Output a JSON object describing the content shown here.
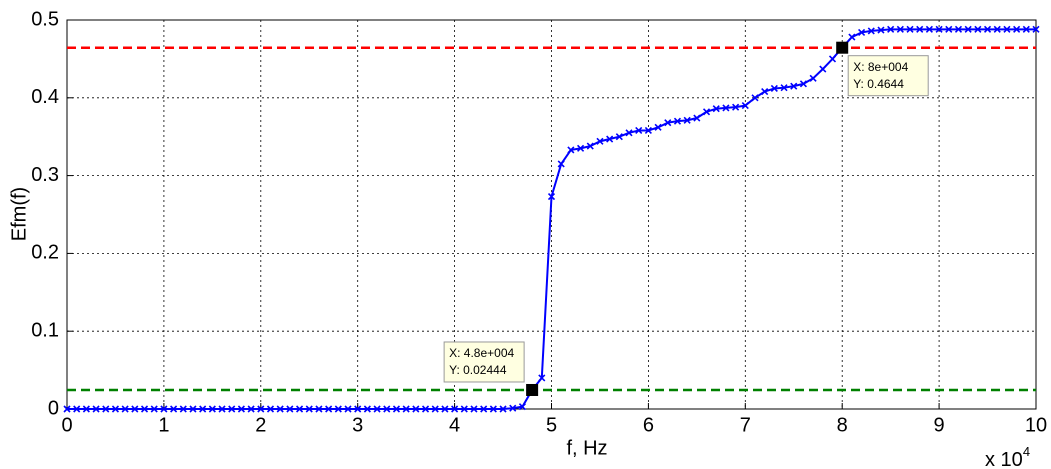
{
  "chart_data": {
    "type": "line",
    "xlabel": "f, Hz",
    "ylabel": "Efm(f)",
    "x_multiplier": "x 10",
    "x_multiplier_exp": "4",
    "x": [
      0,
      1000,
      2000,
      3000,
      4000,
      5000,
      6000,
      7000,
      8000,
      9000,
      10000,
      11000,
      12000,
      13000,
      14000,
      15000,
      16000,
      17000,
      18000,
      19000,
      20000,
      21000,
      22000,
      23000,
      24000,
      25000,
      26000,
      27000,
      28000,
      29000,
      30000,
      31000,
      32000,
      33000,
      34000,
      35000,
      36000,
      37000,
      38000,
      39000,
      40000,
      41000,
      42000,
      43000,
      44000,
      45000,
      46000,
      47000,
      48000,
      49000,
      50000,
      51000,
      52000,
      53000,
      54000,
      55000,
      56000,
      57000,
      58000,
      59000,
      60000,
      61000,
      62000,
      63000,
      64000,
      65000,
      66000,
      67000,
      68000,
      69000,
      70000,
      71000,
      72000,
      73000,
      74000,
      75000,
      76000,
      77000,
      78000,
      79000,
      80000,
      81000,
      82000,
      83000,
      84000,
      85000,
      86000,
      87000,
      88000,
      89000,
      90000,
      91000,
      92000,
      93000,
      94000,
      95000,
      96000,
      97000,
      98000,
      99000,
      100000
    ],
    "series": [
      {
        "color": "#0000ff",
        "values": [
          0,
          0,
          0,
          0,
          0,
          0,
          0,
          0,
          0,
          0,
          0,
          0,
          0,
          0,
          0,
          0,
          0,
          0,
          0,
          0,
          0,
          0,
          0,
          0,
          0,
          0,
          0,
          0,
          0,
          0,
          0,
          0,
          0,
          0,
          0,
          0,
          0,
          0,
          0,
          0,
          0,
          0,
          0,
          0,
          0,
          0,
          0.001,
          0.003,
          0.02444,
          0.04,
          0.273,
          0.315,
          0.333,
          0.335,
          0.338,
          0.344,
          0.347,
          0.35,
          0.355,
          0.358,
          0.358,
          0.362,
          0.368,
          0.37,
          0.371,
          0.374,
          0.382,
          0.386,
          0.387,
          0.388,
          0.39,
          0.4,
          0.408,
          0.412,
          0.413,
          0.415,
          0.418,
          0.425,
          0.437,
          0.45,
          0.4644,
          0.478,
          0.484,
          0.486,
          0.487,
          0.488,
          0.488,
          0.488,
          0.488,
          0.488,
          0.488,
          0.488,
          0.488,
          0.488,
          0.488,
          0.488,
          0.488,
          0.488,
          0.488,
          0.488,
          0.488
        ]
      }
    ],
    "hlines": [
      {
        "value": 0.4644,
        "color": "#ff0000"
      },
      {
        "value": 0.02444,
        "color": "#008000"
      }
    ],
    "datatips": [
      {
        "x": 48000,
        "y": 0.02444,
        "label_x": "X: 4.8e+004",
        "label_y": "Y: 0.02444",
        "corner": "upper-left"
      },
      {
        "x": 80000,
        "y": 0.4644,
        "label_x": "X: 8e+004",
        "label_y": "Y: 0.4644",
        "corner": "lower-right"
      }
    ],
    "xlim": [
      0,
      100000
    ],
    "ylim": [
      0,
      0.5
    ],
    "xticks": [
      0,
      {
        "value": 10000,
        "label": "1"
      },
      {
        "value": 20000,
        "label": "2"
      },
      {
        "value": 30000,
        "label": "3"
      },
      {
        "value": 40000,
        "label": "4"
      },
      {
        "value": 50000,
        "label": "5"
      },
      {
        "value": 60000,
        "label": "6"
      },
      {
        "value": 70000,
        "label": "7"
      },
      {
        "value": 80000,
        "label": "8"
      },
      {
        "value": 90000,
        "label": "9"
      },
      {
        "value": 100000,
        "label": "10"
      }
    ],
    "yticks": [
      0,
      0.1,
      0.2,
      0.3,
      0.4,
      0.5
    ],
    "grid": true
  }
}
